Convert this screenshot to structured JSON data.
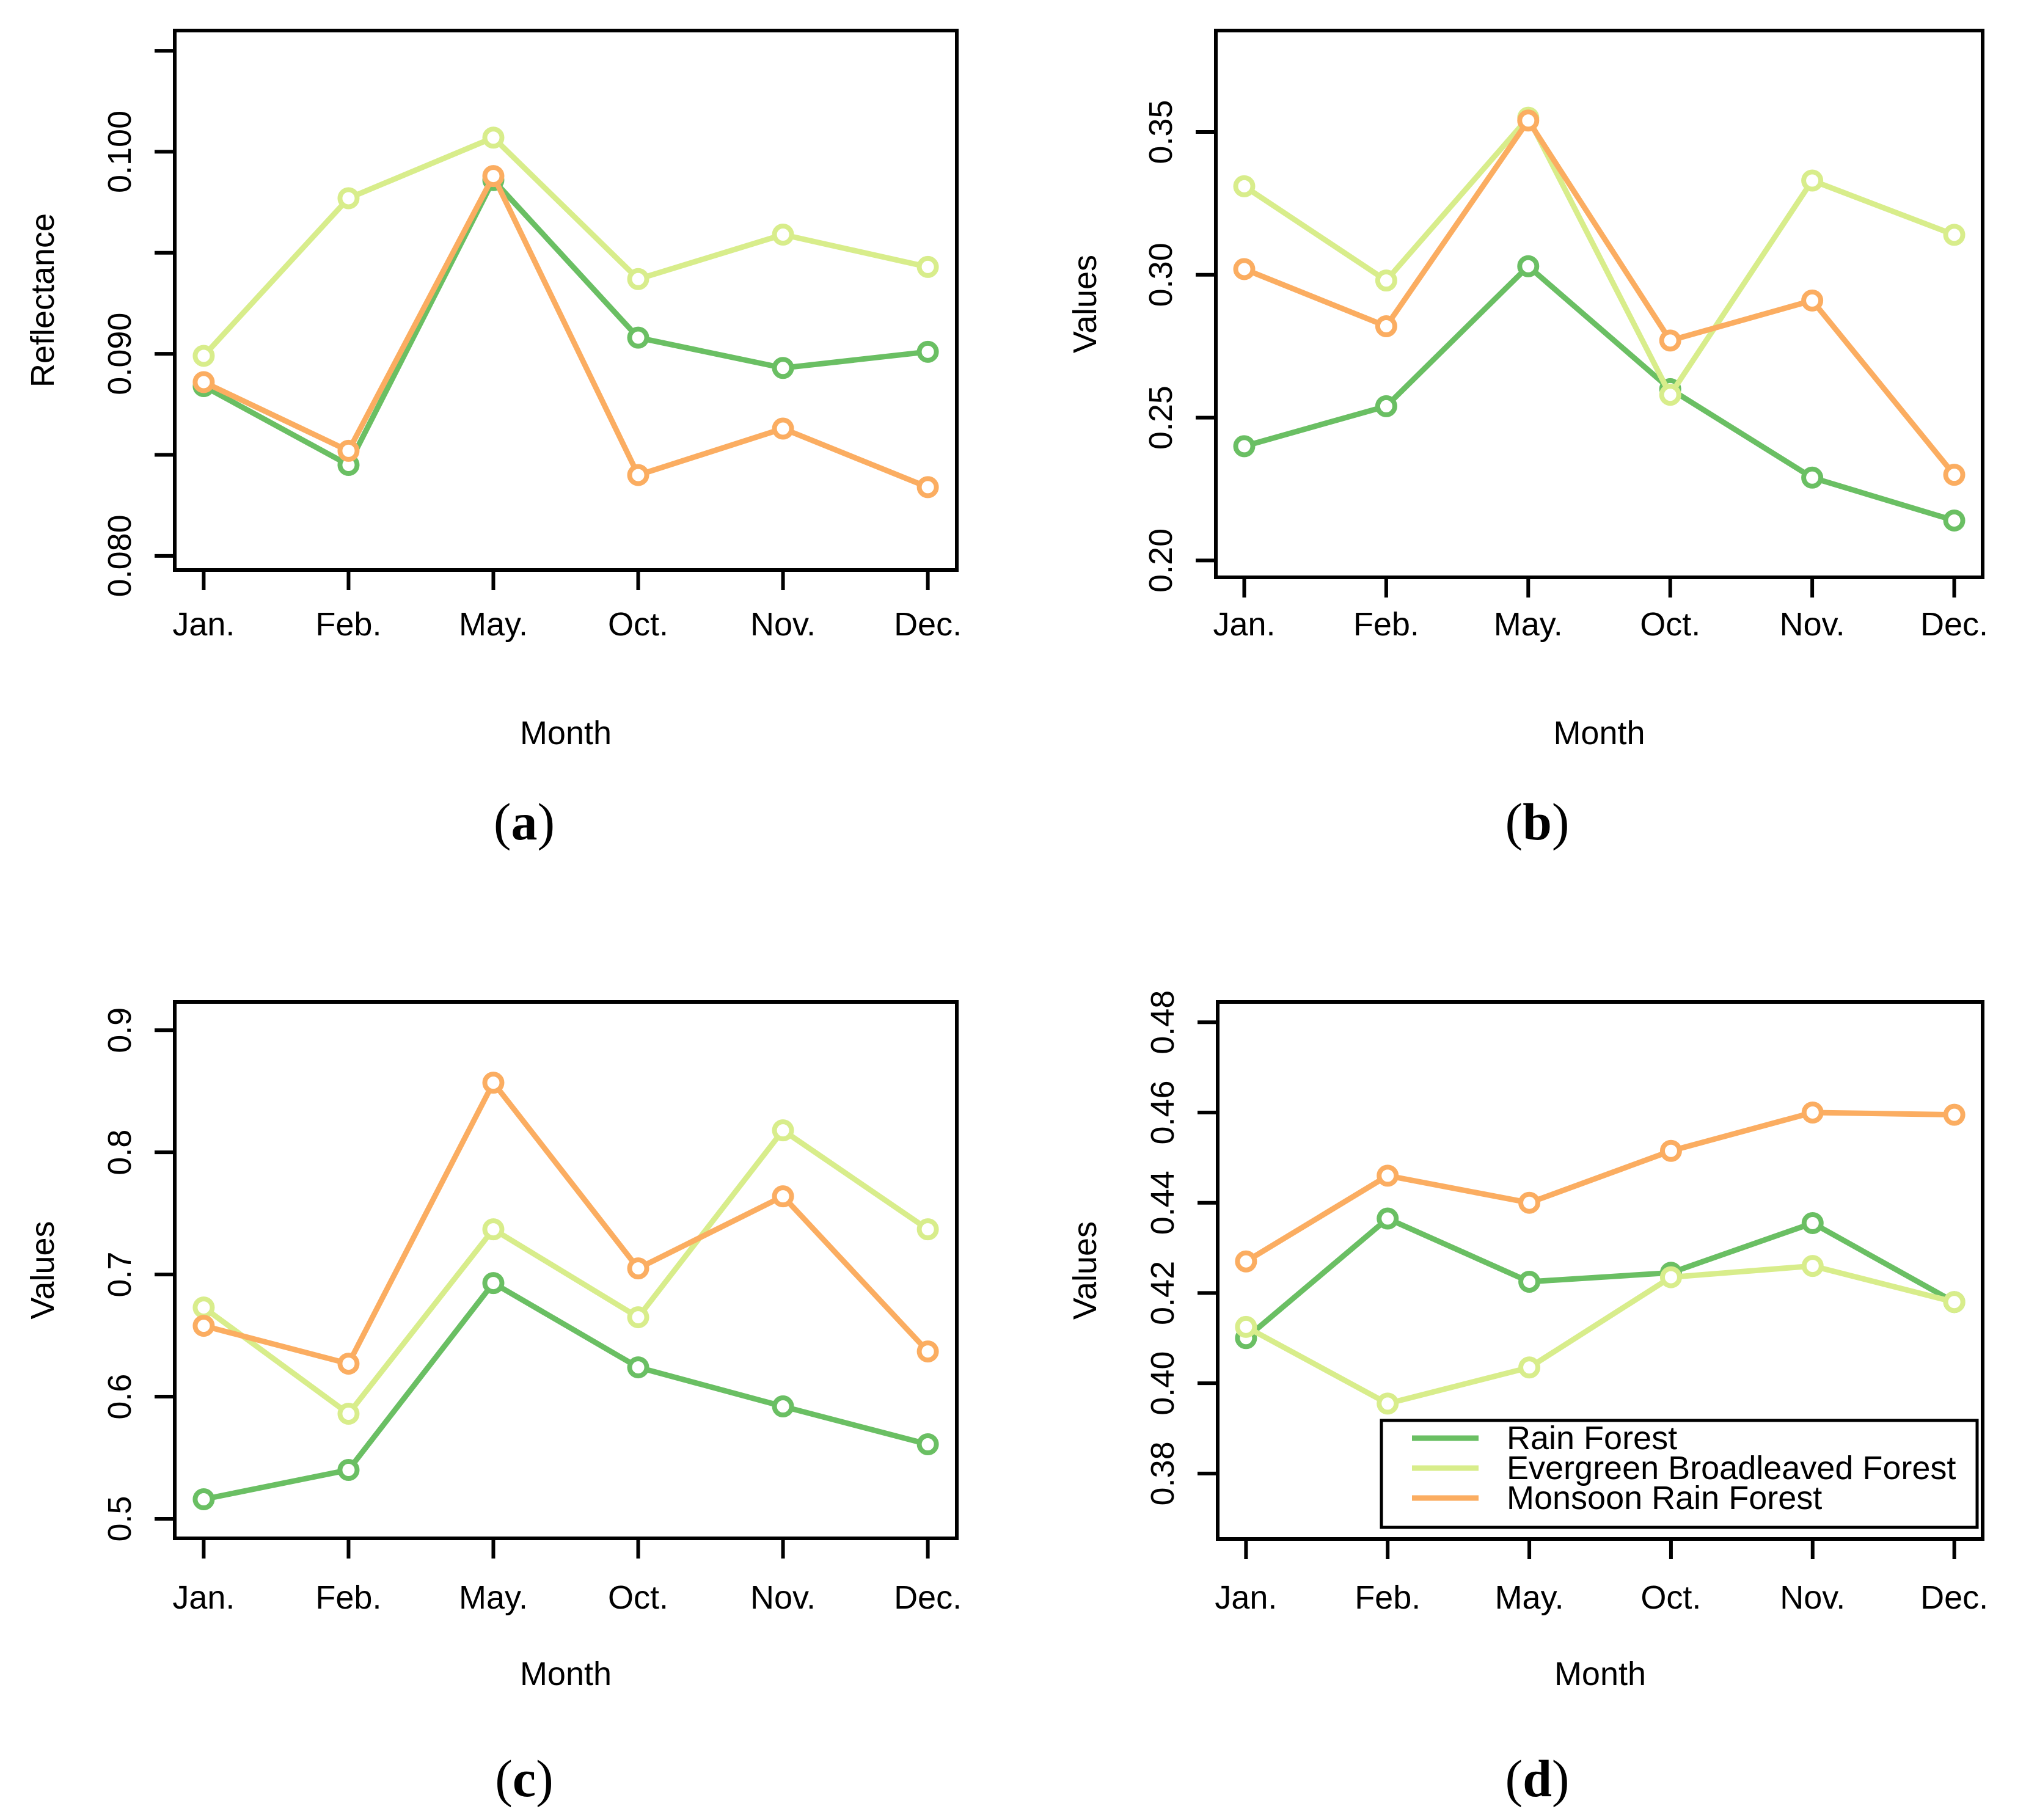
{
  "page": {
    "background": "#ffffff"
  },
  "legend": {
    "entries": [
      {
        "label": "Rain Forest",
        "color": "#6abf63"
      },
      {
        "label": "Evergreen Broadleaved Forest",
        "color": "#d8ed8b"
      },
      {
        "label": "Monsoon Rain Forest",
        "color": "#fbad61"
      }
    ]
  },
  "chart_data": [
    {
      "id": "a",
      "type": "line",
      "caption": "(a)",
      "xlabel": "Month",
      "ylabel": "Reflectance",
      "categories": [
        "Jan.",
        "Feb.",
        "May.",
        "Oct.",
        "Nov.",
        "Dec."
      ],
      "xlim": [
        0.8,
        6.2
      ],
      "ylim": [
        0.0793,
        0.106
      ],
      "yticks": [
        0.08,
        0.085,
        0.09,
        0.095,
        0.1,
        0.105
      ],
      "ytick_labels": [
        "0.080",
        "",
        "0.090",
        "",
        "0.100",
        ""
      ],
      "grid": false,
      "marker": "open-circle",
      "series": [
        {
          "name": "Rain Forest",
          "color": "#6abf63",
          "values": [
            0.0884,
            0.0845,
            0.0986,
            0.0908,
            0.0893,
            0.0901
          ]
        },
        {
          "name": "Evergreen Broadleaved Forest",
          "color": "#d8ed8b",
          "values": [
            0.0899,
            0.0977,
            0.1007,
            0.0937,
            0.0959,
            0.0943
          ]
        },
        {
          "name": "Monsoon Rain Forest",
          "color": "#fbad61",
          "values": [
            0.0886,
            0.0852,
            0.0988,
            0.084,
            0.0863,
            0.0834
          ]
        }
      ]
    },
    {
      "id": "b",
      "type": "line",
      "caption": "(b)",
      "xlabel": "Month",
      "ylabel": "Values",
      "categories": [
        "Jan.",
        "Feb.",
        "May.",
        "Oct.",
        "Nov.",
        "Dec."
      ],
      "xlim": [
        0.8,
        6.2
      ],
      "ylim": [
        0.1941,
        0.3855
      ],
      "yticks": [
        0.2,
        0.25,
        0.3,
        0.35
      ],
      "ytick_labels": [
        "0.20",
        "0.25",
        "0.30",
        "0.35"
      ],
      "grid": false,
      "marker": "open-circle",
      "series": [
        {
          "name": "Rain Forest",
          "color": "#6abf63",
          "values": [
            0.24,
            0.254,
            0.303,
            0.26,
            0.229,
            0.214
          ]
        },
        {
          "name": "Evergreen Broadleaved Forest",
          "color": "#d8ed8b",
          "values": [
            0.331,
            0.298,
            0.355,
            0.258,
            0.333,
            0.314
          ]
        },
        {
          "name": "Monsoon Rain Forest",
          "color": "#fbad61",
          "values": [
            0.302,
            0.282,
            0.354,
            0.277,
            0.291,
            0.23
          ]
        }
      ]
    },
    {
      "id": "c",
      "type": "line",
      "caption": "(c)",
      "xlabel": "Month",
      "ylabel": "Values",
      "categories": [
        "Jan.",
        "Feb.",
        "May.",
        "Oct.",
        "Nov.",
        "Dec."
      ],
      "xlim": [
        0.8,
        6.2
      ],
      "ylim": [
        0.484,
        0.9231
      ],
      "yticks": [
        0.5,
        0.6,
        0.7,
        0.8,
        0.9
      ],
      "ytick_labels": [
        "0.5",
        "0.6",
        "0.7",
        "0.8",
        "0.9"
      ],
      "grid": false,
      "marker": "open-circle",
      "series": [
        {
          "name": "Rain Forest",
          "color": "#6abf63",
          "values": [
            0.516,
            0.54,
            0.693,
            0.624,
            0.592,
            0.561
          ]
        },
        {
          "name": "Evergreen Broadleaved Forest",
          "color": "#d8ed8b",
          "values": [
            0.673,
            0.586,
            0.737,
            0.665,
            0.818,
            0.737
          ]
        },
        {
          "name": "Monsoon Rain Forest",
          "color": "#fbad61",
          "values": [
            0.658,
            0.627,
            0.857,
            0.705,
            0.764,
            0.637
          ]
        }
      ]
    },
    {
      "id": "d",
      "type": "line",
      "caption": "(d)",
      "xlabel": "Month",
      "ylabel": "Values",
      "categories": [
        "Jan.",
        "Feb.",
        "May.",
        "Oct.",
        "Nov.",
        "Dec."
      ],
      "xlim": [
        0.8,
        6.2
      ],
      "ylim": [
        0.3655,
        0.4845
      ],
      "yticks": [
        0.38,
        0.4,
        0.42,
        0.44,
        0.46,
        0.48
      ],
      "ytick_labels": [
        "0.38",
        "0.40",
        "0.42",
        "0.44",
        "0.46",
        "0.48"
      ],
      "grid": false,
      "marker": "open-circle",
      "legend_position": "bottom-right",
      "series": [
        {
          "name": "Rain Forest",
          "color": "#6abf63",
          "values": [
            0.41,
            0.4365,
            0.4225,
            0.4245,
            0.4355,
            0.418
          ]
        },
        {
          "name": "Evergreen Broadleaved Forest",
          "color": "#d8ed8b",
          "values": [
            0.4125,
            0.3955,
            0.4035,
            0.4235,
            0.426,
            0.418
          ]
        },
        {
          "name": "Monsoon Rain Forest",
          "color": "#fbad61",
          "values": [
            0.427,
            0.446,
            0.44,
            0.4515,
            0.46,
            0.4595
          ]
        }
      ]
    }
  ]
}
